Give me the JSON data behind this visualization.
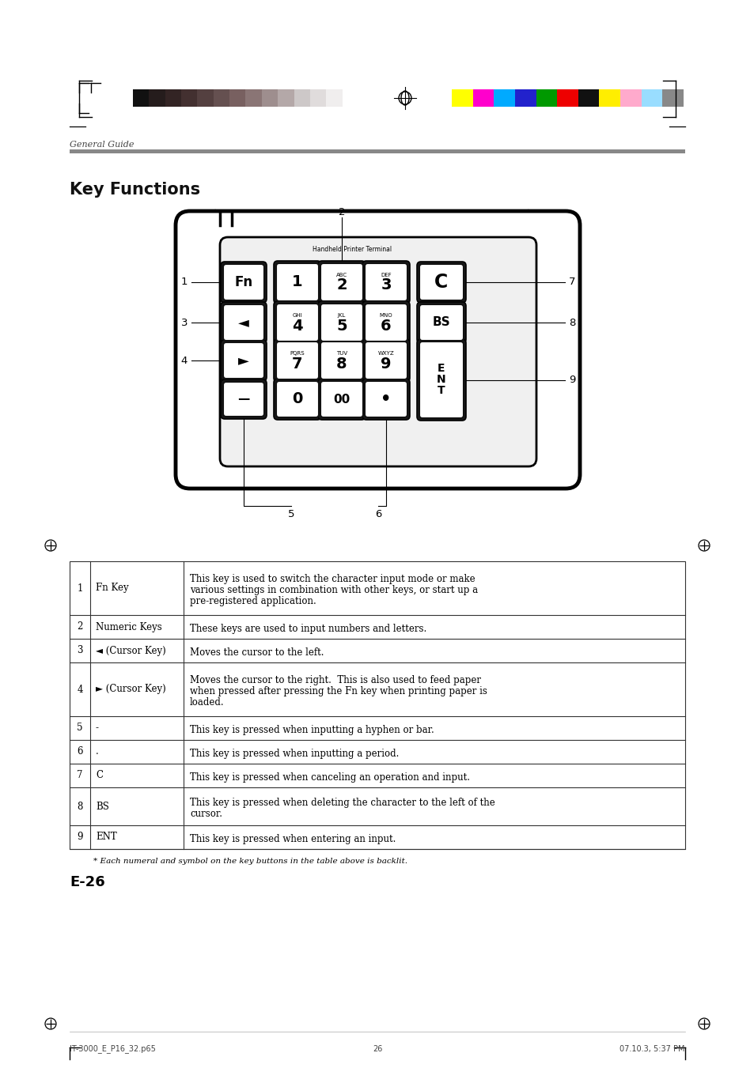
{
  "page_bg": "#ffffff",
  "header_section_label": "General Guide",
  "title": "Key Functions",
  "color_bars_left": [
    "#111111",
    "#251c1c",
    "#332424",
    "#433030",
    "#544040",
    "#655050",
    "#786060",
    "#8a7575",
    "#9e8e8e",
    "#b4a8a8",
    "#cdc8c8",
    "#e0dcdc",
    "#f0eeee",
    "#ffffff"
  ],
  "color_bars_right": [
    "#ffff00",
    "#ff00cc",
    "#00aaff",
    "#2222cc",
    "#009900",
    "#ee0000",
    "#111111",
    "#ffee00",
    "#ffaacc",
    "#99ddff",
    "#888888"
  ],
  "table_rows": [
    {
      "num": "1",
      "key": "Fn Key",
      "desc": "This key is used to switch the character input mode or make\nvarious settings in combination with other keys, or start up a\npre-registered application.",
      "nlines": 3
    },
    {
      "num": "2",
      "key": "Numeric Keys",
      "desc": "These keys are used to input numbers and letters.",
      "nlines": 1
    },
    {
      "num": "3",
      "key": "◄ (Cursor Key)",
      "desc": "Moves the cursor to the left.",
      "nlines": 1
    },
    {
      "num": "4",
      "key": "► (Cursor Key)",
      "desc": "Moves the cursor to the right.  This is also used to feed paper\nwhen pressed after pressing the Fn key when printing paper is\nloaded.",
      "nlines": 3
    },
    {
      "num": "5",
      "key": "-",
      "desc": "This key is pressed when inputting a hyphen or bar.",
      "nlines": 1
    },
    {
      "num": "6",
      "key": ".",
      "desc": "This key is pressed when inputting a period.",
      "nlines": 1
    },
    {
      "num": "7",
      "key": "C",
      "desc": "This key is pressed when canceling an operation and input.",
      "nlines": 1
    },
    {
      "num": "8",
      "key": "BS",
      "desc": "This key is pressed when deleting the character to the left of the\ncursor.",
      "nlines": 2
    },
    {
      "num": "9",
      "key": "ENT",
      "desc": "This key is pressed when entering an input.",
      "nlines": 1
    }
  ],
  "footnote": "* Each numeral and symbol on the key buttons in the table above is backlit.",
  "page_label": "E-26",
  "footer_left": "IT-3000_E_P16_32.p65",
  "footer_center": "26",
  "footer_right": "07.10.3, 5:37 PM"
}
